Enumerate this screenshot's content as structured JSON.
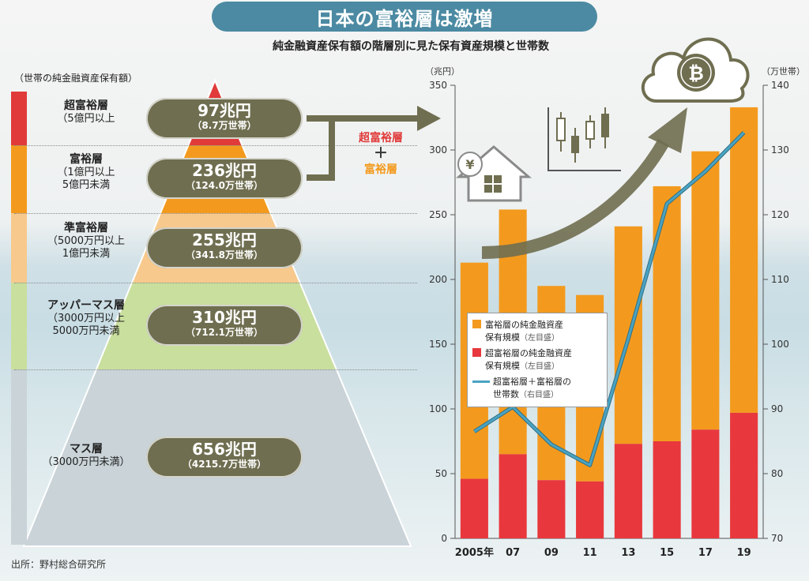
{
  "title": "日本の富裕層は激増",
  "subtitle": "純金融資産保有額の階層別に見た保有資産規模と世帯数",
  "left_header": "（世帯の純金融資産保有額）",
  "tiers": [
    {
      "name": "超富裕層",
      "range": [
        "（5億円以上"
      ],
      "amount": "97兆円",
      "households": "（8.7万世帯）",
      "color": "#e03a3a"
    },
    {
      "name": "富裕層",
      "range": [
        "（1億円以上",
        "5億円未満"
      ],
      "amount": "236兆円",
      "households": "（124.0万世帯）",
      "color": "#f39a1e"
    },
    {
      "name": "準富裕層",
      "range": [
        "（5000万円以上",
        "1億円未満"
      ],
      "amount": "255兆円",
      "households": "（341.8万世帯）",
      "color": "#f7c98c"
    },
    {
      "name": "アッパーマス層",
      "range": [
        "（3000万円以上",
        "5000万円未満"
      ],
      "amount": "310兆円",
      "households": "（712.1万世帯）",
      "color": "#c9df9d"
    },
    {
      "name": "マス層",
      "range": [
        "（3000万円未満）"
      ],
      "amount": "656兆円",
      "households": "（4215.7万世帯）",
      "color": "#c9d3d8"
    }
  ],
  "arrow_text": {
    "line1": "超富裕層",
    "plus": "＋",
    "line2": "富裕層"
  },
  "source": "出所：野村総合研究所",
  "legend": {
    "fuyu": {
      "line1": "富裕層の純金融資産",
      "line2": "保有規模",
      "note": "（左目盛）"
    },
    "chofuyu": {
      "line1": "超富裕層の純金融資産",
      "line2": "保有規模",
      "note": "（左目盛）"
    },
    "households": {
      "line1": "超富裕層＋富裕層の",
      "line2": "世帯数",
      "note": "（右目盛）"
    }
  },
  "icons": [
    "yen-house-icon",
    "candlestick-chart-icon",
    "bitcoin-cloud-icon",
    "growth-arrow-icon"
  ],
  "colors": {
    "fuyu": "#f39a1e",
    "chofuyu": "#e8383d",
    "line": "#4aa3c2",
    "title_bg": "#4b8aa2",
    "pill": "#6f6e50"
  },
  "chart_data": {
    "type": "bar",
    "categories": [
      "2005年",
      "07",
      "09",
      "11",
      "13",
      "15",
      "17",
      "19"
    ],
    "left_axis_label": "（兆円）",
    "right_axis_label": "（万世帯）",
    "left_ticks": [
      "0",
      "50",
      "100",
      "150",
      "200",
      "250",
      "300",
      "350"
    ],
    "right_ticks": [
      "70",
      "80",
      "90",
      "100",
      "110",
      "120",
      "130",
      "140"
    ],
    "ylim_left": [
      0,
      350
    ],
    "ylim_right": [
      70,
      140
    ],
    "series": [
      {
        "name": "超富裕層の純金融資産保有規模",
        "axis": "left",
        "values": [
          46,
          65,
          45,
          44,
          73,
          75,
          84,
          97
        ]
      },
      {
        "name": "富裕層の純金融資産保有規模",
        "axis": "left",
        "values": [
          167,
          189,
          150,
          144,
          168,
          197,
          215,
          236
        ]
      },
      {
        "name": "超富裕層＋富裕層の世帯数",
        "axis": "right",
        "type": "line",
        "values": [
          86.5,
          90.3,
          84.5,
          81.3,
          100.9,
          121.7,
          126.7,
          132.7
        ]
      }
    ]
  }
}
